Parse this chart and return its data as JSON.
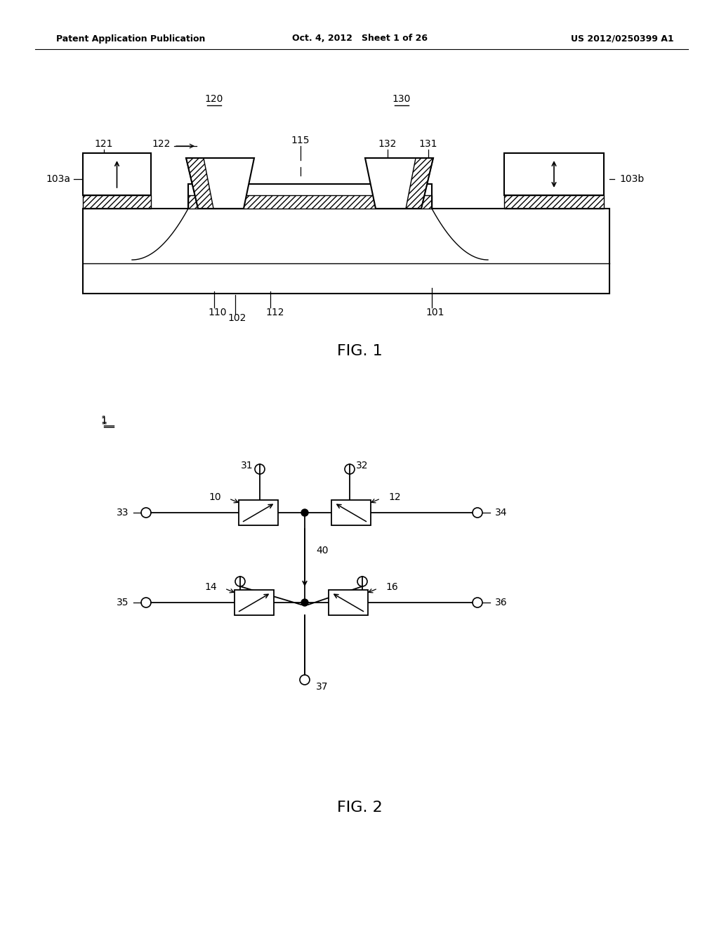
{
  "bg_color": "#ffffff",
  "header_left": "Patent Application Publication",
  "header_center": "Oct. 4, 2012   Sheet 1 of 26",
  "header_right": "US 2012/0250399 A1",
  "fig1_label": "FIG. 1",
  "fig2_label": "FIG. 2",
  "label_1": "1"
}
